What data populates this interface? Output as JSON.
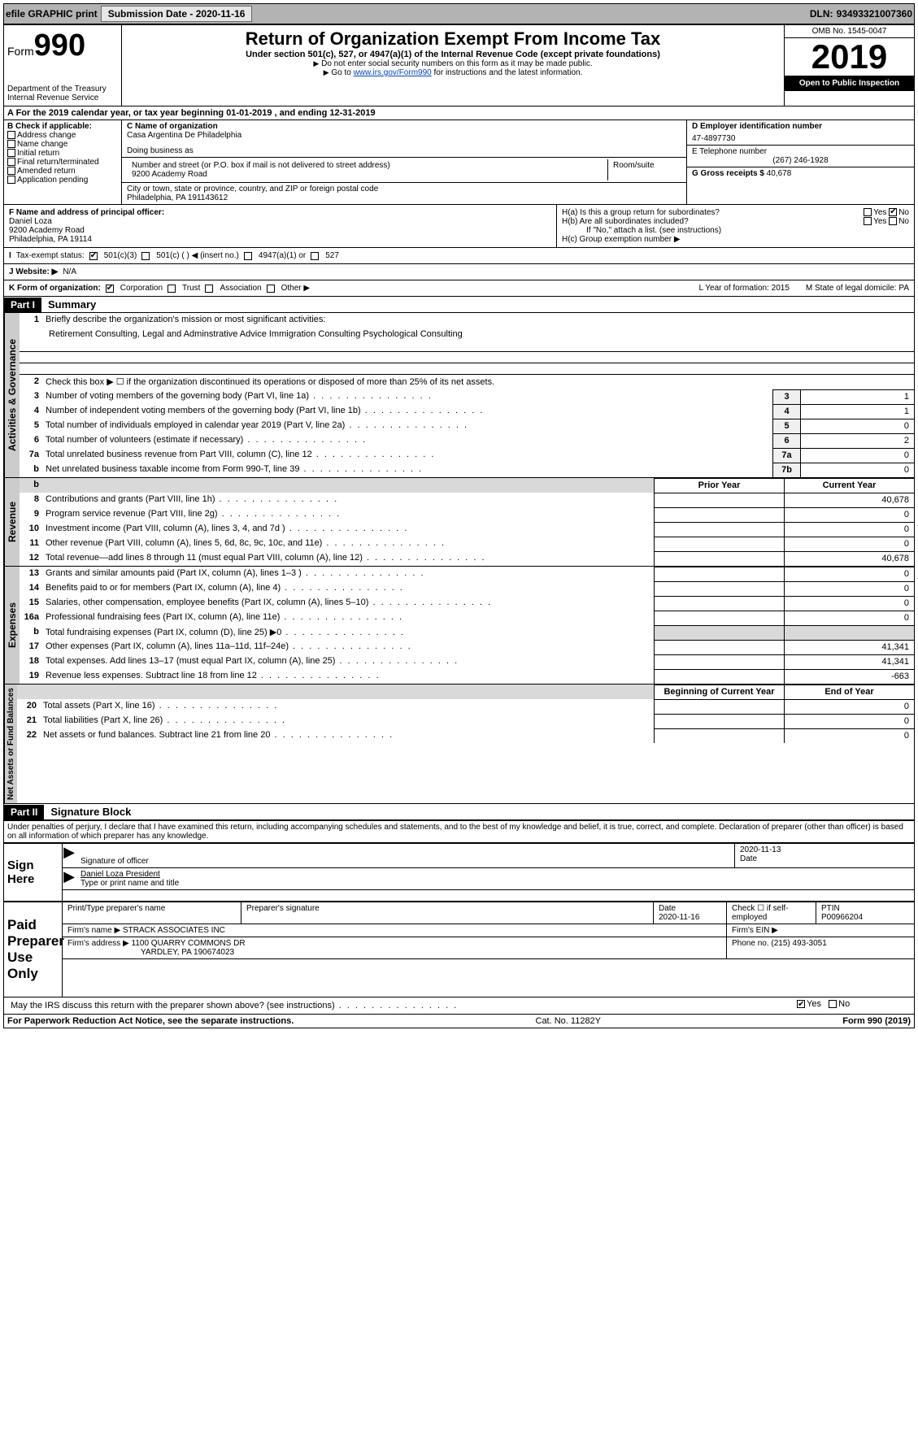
{
  "topbar": {
    "efile": "efile GRAPHIC print",
    "sub_label": "Submission Date",
    "sub_date": "2020-11-16",
    "dln_label": "DLN:",
    "dln": "93493321007360"
  },
  "header": {
    "form_word": "Form",
    "form_num": "990",
    "dept": "Department of the Treasury\nInternal Revenue Service",
    "title": "Return of Organization Exempt From Income Tax",
    "sub": "Under section 501(c), 527, or 4947(a)(1) of the Internal Revenue Code (except private foundations)",
    "instr1": "Do not enter social security numbers on this form as it may be made public.",
    "instr2_pre": "Go to ",
    "instr2_link": "www.irs.gov/Form990",
    "instr2_post": " for instructions and the latest information.",
    "omb": "OMB No. 1545-0047",
    "year": "2019",
    "open": "Open to Public Inspection"
  },
  "row_a": "A For the 2019 calendar year, or tax year beginning 01-01-2019   , and ending 12-31-2019",
  "box_b": {
    "hdr": "B Check if applicable:",
    "items": [
      "Address change",
      "Name change",
      "Initial return",
      "Final return/terminated",
      "Amended return",
      "Application pending"
    ]
  },
  "box_c": {
    "name_lbl": "C Name of organization",
    "name": "Casa Argentina De Philadelphia",
    "dba_lbl": "Doing business as",
    "addr_lbl": "Number and street (or P.O. box if mail is not delivered to street address)",
    "room_lbl": "Room/suite",
    "addr": "9200 Academy Road",
    "city_lbl": "City or town, state or province, country, and ZIP or foreign postal code",
    "city": "Philadelphia, PA  191143612"
  },
  "box_d": {
    "ein_lbl": "D Employer identification number",
    "ein": "47-4897730",
    "tel_lbl": "E Telephone number",
    "tel": "(267) 246-1928",
    "gross_lbl": "G Gross receipts $",
    "gross": "40,678"
  },
  "box_f": {
    "lbl": "F Name and address of principal officer:",
    "name": "Daniel Loza",
    "addr": "9200 Academy Road",
    "city": "Philadelphia, PA  19114"
  },
  "box_h": {
    "a": "H(a)  Is this a group return for subordinates?",
    "b": "H(b)  Are all subordinates included?",
    "b_note": "If \"No,\" attach a list. (see instructions)",
    "c": "H(c)  Group exemption number ▶",
    "yes": "Yes",
    "no": "No"
  },
  "row_i": {
    "lbl": "Tax-exempt status:",
    "opts": [
      "501(c)(3)",
      "501(c) (  ) ◀ (insert no.)",
      "4947(a)(1) or",
      "527"
    ]
  },
  "row_j": {
    "lbl": "J   Website: ▶",
    "val": "N/A"
  },
  "row_k": {
    "lbl": "K Form of organization:",
    "opts": [
      "Corporation",
      "Trust",
      "Association",
      "Other ▶"
    ],
    "l": "L Year of formation: 2015",
    "m": "M State of legal domicile: PA"
  },
  "part1": {
    "hdr": "Part I",
    "title": "Summary",
    "l1": "Briefly describe the organization's mission or most significant activities:",
    "mission": "Retirement Consulting, Legal and Adminstrative Advice Immigration Consulting Psychological Consulting",
    "l2": "Check this box ▶ ☐  if the organization discontinued its operations or disposed of more than 25% of its net assets.",
    "lines_a": [
      {
        "n": "3",
        "t": "Number of voting members of the governing body (Part VI, line 1a)",
        "b": "3",
        "v": "1"
      },
      {
        "n": "4",
        "t": "Number of independent voting members of the governing body (Part VI, line 1b)",
        "b": "4",
        "v": "1"
      },
      {
        "n": "5",
        "t": "Total number of individuals employed in calendar year 2019 (Part V, line 2a)",
        "b": "5",
        "v": "0"
      },
      {
        "n": "6",
        "t": "Total number of volunteers (estimate if necessary)",
        "b": "6",
        "v": "2"
      },
      {
        "n": "7a",
        "t": "Total unrelated business revenue from Part VIII, column (C), line 12",
        "b": "7a",
        "v": "0"
      },
      {
        "n": "b",
        "t": "Net unrelated business taxable income from Form 990-T, line 39",
        "b": "7b",
        "v": "0"
      }
    ],
    "col_prior": "Prior Year",
    "col_curr": "Current Year",
    "rev": [
      {
        "n": "8",
        "t": "Contributions and grants (Part VIII, line 1h)",
        "p": "",
        "c": "40,678"
      },
      {
        "n": "9",
        "t": "Program service revenue (Part VIII, line 2g)",
        "p": "",
        "c": "0"
      },
      {
        "n": "10",
        "t": "Investment income (Part VIII, column (A), lines 3, 4, and 7d )",
        "p": "",
        "c": "0"
      },
      {
        "n": "11",
        "t": "Other revenue (Part VIII, column (A), lines 5, 6d, 8c, 9c, 10c, and 11e)",
        "p": "",
        "c": "0"
      },
      {
        "n": "12",
        "t": "Total revenue—add lines 8 through 11 (must equal Part VIII, column (A), line 12)",
        "p": "",
        "c": "40,678"
      }
    ],
    "exp": [
      {
        "n": "13",
        "t": "Grants and similar amounts paid (Part IX, column (A), lines 1–3 )",
        "p": "",
        "c": "0"
      },
      {
        "n": "14",
        "t": "Benefits paid to or for members (Part IX, column (A), line 4)",
        "p": "",
        "c": "0"
      },
      {
        "n": "15",
        "t": "Salaries, other compensation, employee benefits (Part IX, column (A), lines 5–10)",
        "p": "",
        "c": "0"
      },
      {
        "n": "16a",
        "t": "Professional fundraising fees (Part IX, column (A), line 11e)",
        "p": "",
        "c": "0"
      },
      {
        "n": "b",
        "t": "Total fundraising expenses (Part IX, column (D), line 25) ▶0",
        "p": "shade",
        "c": "shade"
      },
      {
        "n": "17",
        "t": "Other expenses (Part IX, column (A), lines 11a–11d, 11f–24e)",
        "p": "",
        "c": "41,341"
      },
      {
        "n": "18",
        "t": "Total expenses. Add lines 13–17 (must equal Part IX, column (A), line 25)",
        "p": "",
        "c": "41,341"
      },
      {
        "n": "19",
        "t": "Revenue less expenses. Subtract line 18 from line 12",
        "p": "",
        "c": "-663"
      }
    ],
    "col_beg": "Beginning of Current Year",
    "col_end": "End of Year",
    "net": [
      {
        "n": "20",
        "t": "Total assets (Part X, line 16)",
        "p": "",
        "c": "0"
      },
      {
        "n": "21",
        "t": "Total liabilities (Part X, line 26)",
        "p": "",
        "c": "0"
      },
      {
        "n": "22",
        "t": "Net assets or fund balances. Subtract line 21 from line 20",
        "p": "",
        "c": "0"
      }
    ],
    "tab_gov": "Activities & Governance",
    "tab_rev": "Revenue",
    "tab_exp": "Expenses",
    "tab_net": "Net Assets or Fund Balances"
  },
  "part2": {
    "hdr": "Part II",
    "title": "Signature Block",
    "perjury": "Under penalties of perjury, I declare that I have examined this return, including accompanying schedules and statements, and to the best of my knowledge and belief, it is true, correct, and complete. Declaration of preparer (other than officer) is based on all information of which preparer has any knowledge."
  },
  "sign": {
    "here": "Sign Here",
    "sig_lbl": "Signature of officer",
    "date_lbl": "Date",
    "date": "2020-11-13",
    "name": "Daniel Loza  President",
    "name_lbl": "Type or print name and title"
  },
  "paid": {
    "here": "Paid Preparer Use Only",
    "prep_name_lbl": "Print/Type preparer's name",
    "prep_sig_lbl": "Preparer's signature",
    "date_lbl": "Date",
    "date": "2020-11-16",
    "check_lbl": "Check ☐ if self-employed",
    "ptin_lbl": "PTIN",
    "ptin": "P00966204",
    "firm_name_lbl": "Firm's name   ▶",
    "firm_name": "STRACK ASSOCIATES INC",
    "firm_ein_lbl": "Firm's EIN ▶",
    "firm_addr_lbl": "Firm's address ▶",
    "firm_addr": "1100 QUARRY COMMONS DR",
    "firm_city": "YARDLEY, PA  190674023",
    "phone_lbl": "Phone no.",
    "phone": "(215) 493-3051"
  },
  "discuss": "May the IRS discuss this return with the preparer shown above? (see instructions)",
  "footer": {
    "left": "For Paperwork Reduction Act Notice, see the separate instructions.",
    "mid": "Cat. No. 11282Y",
    "right": "Form 990 (2019)"
  }
}
